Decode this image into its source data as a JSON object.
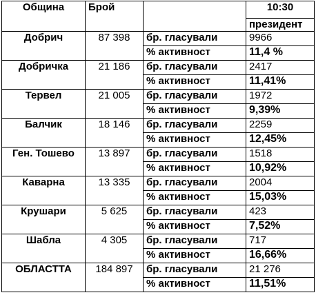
{
  "table": {
    "headers": [
      "Община",
      "Брой",
      "10:30",
      "президент"
    ],
    "rows": [
      {
        "name": "Добрич",
        "count": "87 398",
        "voted_label": "бр. гласували",
        "voted": "9966",
        "activity_label": "% активност",
        "activity": "11,4 %"
      },
      {
        "name": "Добричка",
        "count": "21 186",
        "voted_label": "бр. гласували",
        "voted": "2417",
        "activity_label": "% активност",
        "activity": "11,41%"
      },
      {
        "name": "Тервел",
        "count": "21 005",
        "voted_label": "бр. гласували",
        "voted": "1972",
        "activity_label": "% активност",
        "activity": "9,39%"
      },
      {
        "name": "Балчик",
        "count": "18 146",
        "voted_label": "бр. гласували",
        "voted": "2259",
        "activity_label": "% активност",
        "activity": "12,45%"
      },
      {
        "name": "Ген. Тошево",
        "count": "13 897",
        "voted_label": "бр. гласували",
        "voted": "1518",
        "activity_label": "% активност",
        "activity": "10,92%"
      },
      {
        "name": "Каварна",
        "count": "13 335",
        "voted_label": "бр. гласували",
        "voted": "2004",
        "activity_label": "% активност",
        "activity": "15,03%"
      },
      {
        "name": "Крушари",
        "count": "5 625",
        "voted_label": "бр. гласували",
        "voted": "423",
        "activity_label": "% активност",
        "activity": "7,52%"
      },
      {
        "name": "Шабла",
        "count": "4 305",
        "voted_label": "бр. гласували",
        "voted": "717",
        "activity_label": "% активност",
        "activity": "16,66%"
      },
      {
        "name": "ОБЛАСТТА",
        "count": "184 897",
        "voted_label": "бр. гласували",
        "voted": "21 276",
        "activity_label": "% активност",
        "activity": "11,51%"
      }
    ]
  }
}
